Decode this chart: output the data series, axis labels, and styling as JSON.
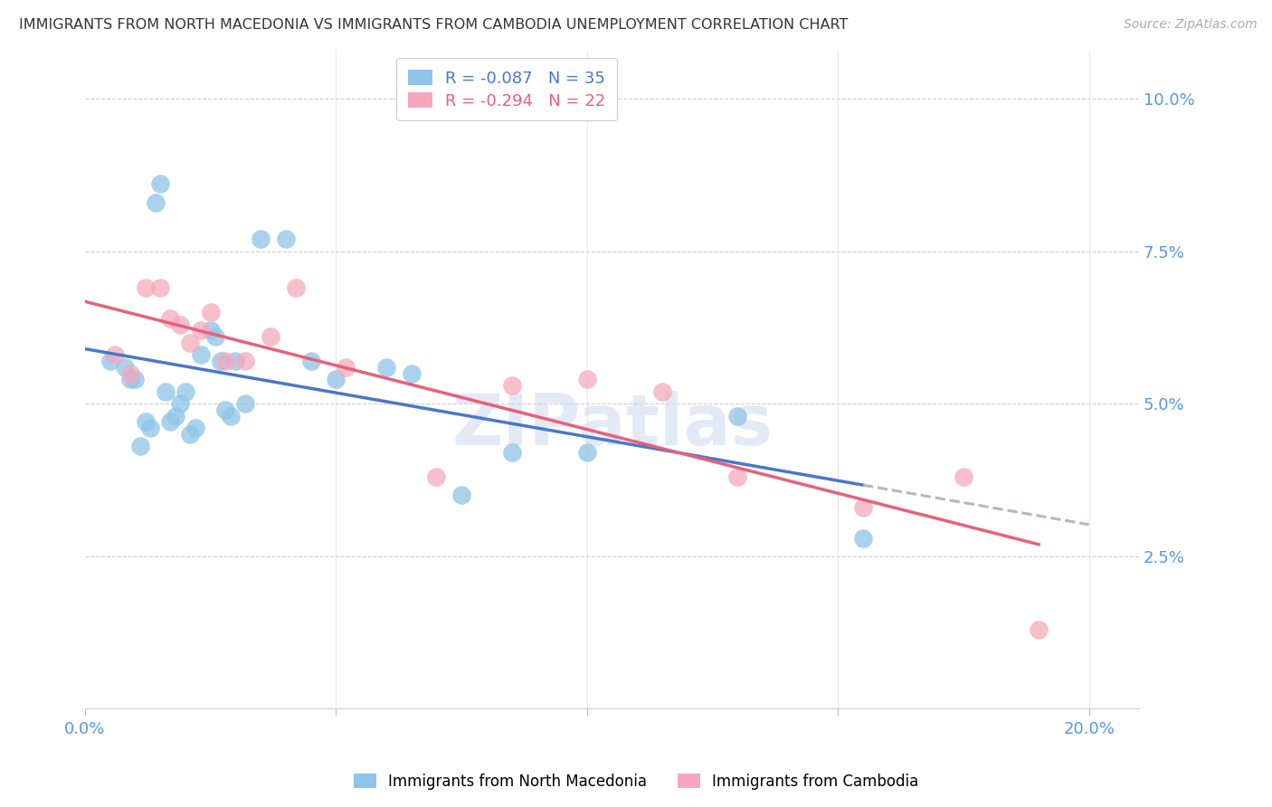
{
  "title": "IMMIGRANTS FROM NORTH MACEDONIA VS IMMIGRANTS FROM CAMBODIA UNEMPLOYMENT CORRELATION CHART",
  "source": "Source: ZipAtlas.com",
  "ylabel": "Unemployment",
  "y_ticks": [
    0.025,
    0.05,
    0.075,
    0.1
  ],
  "y_tick_labels": [
    "2.5%",
    "5.0%",
    "7.5%",
    "10.0%"
  ],
  "xlim": [
    0.0,
    0.21
  ],
  "ylim": [
    0.0,
    0.108
  ],
  "legend1_label": "R = -0.087   N = 35",
  "legend2_label": "R = -0.294   N = 22",
  "footer_label1": "Immigrants from North Macedonia",
  "footer_label2": "Immigrants from Cambodia",
  "blue_color": "#8ec4e8",
  "pink_color": "#f5a8bc",
  "blue_line_color": "#4878c8",
  "pink_line_color": "#e8607a",
  "dash_color": "#b0b8c8",
  "watermark_color": "#ccd8ee",
  "nm_x": [
    0.005,
    0.008,
    0.009,
    0.01,
    0.011,
    0.012,
    0.013,
    0.014,
    0.015,
    0.016,
    0.017,
    0.018,
    0.019,
    0.02,
    0.021,
    0.022,
    0.023,
    0.025,
    0.026,
    0.027,
    0.028,
    0.029,
    0.03,
    0.032,
    0.035,
    0.04,
    0.045,
    0.05,
    0.06,
    0.065,
    0.075,
    0.085,
    0.1,
    0.13,
    0.155
  ],
  "nm_y": [
    0.057,
    0.056,
    0.054,
    0.054,
    0.043,
    0.047,
    0.046,
    0.083,
    0.086,
    0.052,
    0.047,
    0.048,
    0.05,
    0.052,
    0.045,
    0.046,
    0.058,
    0.062,
    0.061,
    0.057,
    0.049,
    0.048,
    0.057,
    0.05,
    0.077,
    0.077,
    0.057,
    0.054,
    0.056,
    0.055,
    0.035,
    0.042,
    0.042,
    0.048,
    0.028
  ],
  "cam_x": [
    0.006,
    0.009,
    0.012,
    0.015,
    0.017,
    0.019,
    0.021,
    0.023,
    0.025,
    0.028,
    0.032,
    0.037,
    0.042,
    0.052,
    0.07,
    0.085,
    0.1,
    0.115,
    0.13,
    0.155,
    0.175,
    0.19
  ],
  "cam_y": [
    0.058,
    0.055,
    0.069,
    0.069,
    0.064,
    0.063,
    0.06,
    0.062,
    0.065,
    0.057,
    0.057,
    0.061,
    0.069,
    0.056,
    0.038,
    0.053,
    0.054,
    0.052,
    0.038,
    0.033,
    0.038,
    0.013
  ]
}
